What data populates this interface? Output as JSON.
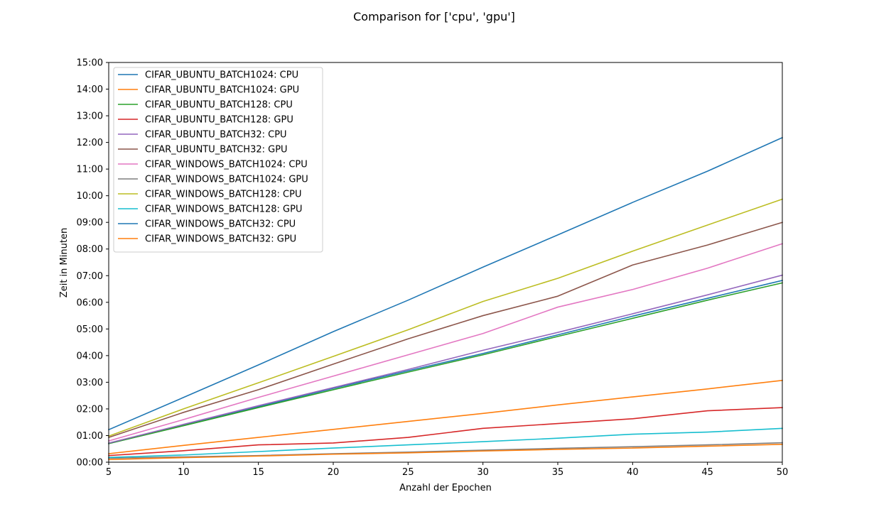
{
  "chart_data": {
    "type": "line",
    "title": "Comparison for ['cpu', 'gpu']",
    "xlabel": "Anzahl der Epochen",
    "ylabel": "Zeit in Minuten",
    "xlim": [
      5,
      50
    ],
    "ylim": [
      0,
      15
    ],
    "y_unit": "minutes",
    "grid": false,
    "legend_position": "top-left",
    "x": [
      5,
      10,
      15,
      20,
      25,
      30,
      35,
      40,
      45,
      50
    ],
    "x_ticks": [
      5,
      10,
      15,
      20,
      25,
      30,
      35,
      40,
      45,
      50
    ],
    "y_ticks": [
      0,
      1,
      2,
      3,
      4,
      5,
      6,
      7,
      8,
      9,
      10,
      11,
      12,
      13,
      14,
      15
    ],
    "y_tick_labels": [
      "00:00",
      "01:00",
      "02:00",
      "03:00",
      "04:00",
      "05:00",
      "06:00",
      "07:00",
      "08:00",
      "09:00",
      "10:00",
      "11:00",
      "12:00",
      "13:00",
      "14:00",
      "15:00"
    ],
    "series": [
      {
        "name": "CIFAR_UBUNTU_BATCH1024: CPU",
        "color": "#1f77b4",
        "values": [
          0.7,
          1.38,
          2.08,
          2.77,
          3.43,
          4.08,
          4.78,
          5.48,
          6.15,
          6.82
        ]
      },
      {
        "name": "CIFAR_UBUNTU_BATCH1024: GPU",
        "color": "#ff7f0e",
        "values": [
          0.32,
          0.63,
          0.93,
          1.23,
          1.53,
          1.83,
          2.15,
          2.45,
          2.75,
          3.07
        ]
      },
      {
        "name": "CIFAR_UBUNTU_BATCH128: CPU",
        "color": "#2ca02c",
        "values": [
          0.7,
          1.37,
          2.05,
          2.72,
          3.38,
          4.03,
          4.72,
          5.4,
          6.08,
          6.73
        ]
      },
      {
        "name": "CIFAR_UBUNTU_BATCH128: GPU",
        "color": "#d62728",
        "values": [
          0.25,
          0.43,
          0.65,
          0.72,
          0.93,
          1.27,
          1.45,
          1.63,
          1.93,
          2.05
        ]
      },
      {
        "name": "CIFAR_UBUNTU_BATCH32: CPU",
        "color": "#9467bd",
        "values": [
          0.72,
          1.42,
          2.12,
          2.8,
          3.48,
          4.2,
          4.87,
          5.57,
          6.28,
          7.02
        ]
      },
      {
        "name": "CIFAR_UBUNTU_BATCH32: GPU",
        "color": "#8c564b",
        "values": [
          0.93,
          1.87,
          2.72,
          3.68,
          4.63,
          5.5,
          6.23,
          7.4,
          8.15,
          9.0
        ]
      },
      {
        "name": "CIFAR_WINDOWS_BATCH1024: CPU",
        "color": "#e377c2",
        "values": [
          0.8,
          1.6,
          2.43,
          3.23,
          4.03,
          4.83,
          5.82,
          6.48,
          7.28,
          8.2
        ]
      },
      {
        "name": "CIFAR_WINDOWS_BATCH1024: GPU",
        "color": "#7f7f7f",
        "values": [
          0.15,
          0.2,
          0.25,
          0.32,
          0.38,
          0.45,
          0.52,
          0.58,
          0.65,
          0.73
        ]
      },
      {
        "name": "CIFAR_WINDOWS_BATCH128: CPU",
        "color": "#bcbd22",
        "values": [
          0.98,
          2.0,
          2.98,
          3.97,
          4.97,
          6.03,
          6.9,
          7.92,
          8.9,
          9.87
        ]
      },
      {
        "name": "CIFAR_WINDOWS_BATCH128: GPU",
        "color": "#17becf",
        "values": [
          0.18,
          0.27,
          0.4,
          0.53,
          0.65,
          0.77,
          0.9,
          1.05,
          1.13,
          1.27
        ]
      },
      {
        "name": "CIFAR_WINDOWS_BATCH32: CPU",
        "color": "#1f77b4",
        "values": [
          1.22,
          2.43,
          3.65,
          4.9,
          6.08,
          7.32,
          8.53,
          9.75,
          10.92,
          12.18
        ]
      },
      {
        "name": "CIFAR_WINDOWS_BATCH32: GPU",
        "color": "#ff7f0e",
        "values": [
          0.1,
          0.17,
          0.23,
          0.3,
          0.35,
          0.42,
          0.48,
          0.53,
          0.6,
          0.67
        ]
      }
    ]
  }
}
